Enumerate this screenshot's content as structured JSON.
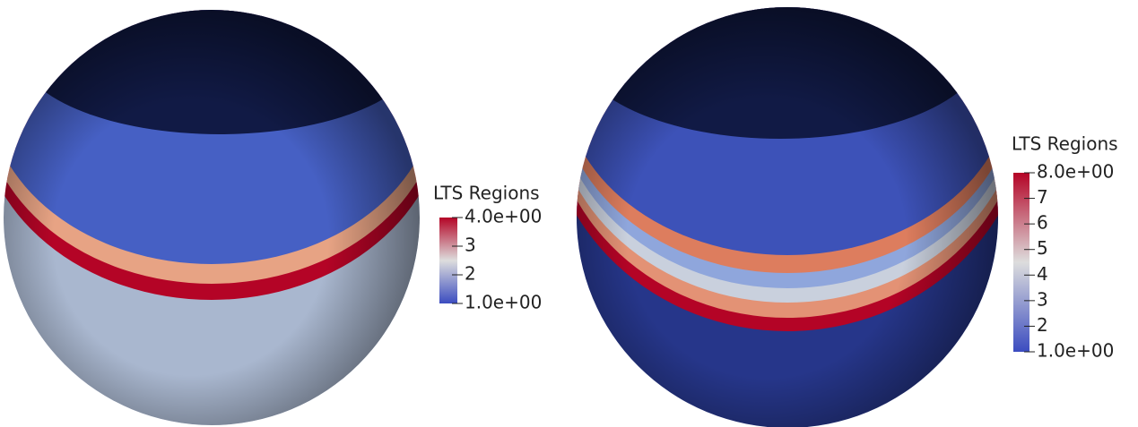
{
  "panels": [
    {
      "colorbar": {
        "title": "LTS  Regions",
        "range": [
          1,
          4
        ],
        "ticks": [
          {
            "value": 4,
            "label": "4.0e+00"
          },
          3,
          2,
          {
            "value": 1,
            "label": "1.0e+00"
          }
        ]
      }
    },
    {
      "colorbar": {
        "title": "LTS Regions",
        "range": [
          1,
          8
        ],
        "ticks": [
          {
            "value": 8,
            "label": "8.0e+00"
          },
          7,
          6,
          5,
          4,
          3,
          2,
          {
            "value": 1,
            "label": "1.0e+00"
          }
        ]
      }
    }
  ]
}
